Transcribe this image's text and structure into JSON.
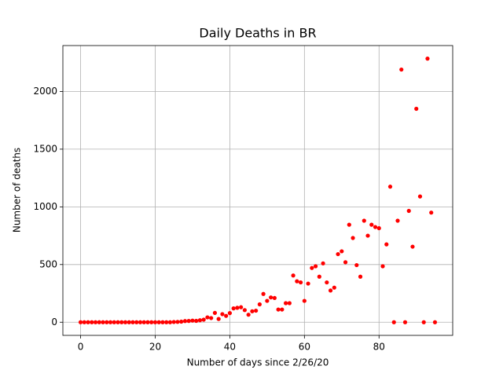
{
  "chart_data": {
    "type": "scatter",
    "title": "Daily Deaths in BR",
    "x_label": "Number of days since 2/26/20",
    "y_label": "Number of deaths",
    "color": "red",
    "grid": true,
    "xlim": [
      -4.75,
      99.75
    ],
    "ylim": [
      -114,
      2398
    ],
    "xticks": [
      0,
      20,
      40,
      60,
      80
    ],
    "yticks": [
      0,
      500,
      1000,
      1500,
      2000
    ],
    "x": [
      0,
      1,
      2,
      3,
      4,
      5,
      6,
      7,
      8,
      9,
      10,
      11,
      12,
      13,
      14,
      15,
      16,
      17,
      18,
      19,
      20,
      21,
      22,
      23,
      24,
      25,
      26,
      27,
      28,
      29,
      30,
      31,
      32,
      33,
      34,
      35,
      36,
      37,
      38,
      39,
      40,
      41,
      42,
      43,
      44,
      45,
      46,
      47,
      48,
      49,
      50,
      51,
      52,
      53,
      54,
      55,
      56,
      57,
      58,
      59,
      60,
      61,
      62,
      63,
      64,
      65,
      66,
      67,
      68,
      69,
      70,
      71,
      72,
      73,
      74,
      75,
      76,
      77,
      78,
      79,
      80,
      81,
      82,
      83,
      84,
      85,
      86,
      87,
      88,
      89,
      90,
      91,
      92,
      93,
      94,
      95
    ],
    "values": [
      0,
      0,
      0,
      0,
      0,
      0,
      0,
      0,
      0,
      0,
      0,
      0,
      0,
      0,
      0,
      0,
      0,
      0,
      0,
      0,
      0,
      0,
      0,
      0,
      0,
      2,
      3,
      5,
      10,
      11,
      14,
      12,
      17,
      22,
      42,
      36,
      81,
      28,
      70,
      55,
      79,
      120,
      125,
      130,
      105,
      65,
      95,
      100,
      155,
      245,
      185,
      215,
      210,
      110,
      110,
      165,
      165,
      405,
      355,
      345,
      185,
      335,
      470,
      485,
      395,
      510,
      345,
      275,
      300,
      590,
      615,
      520,
      845,
      730,
      495,
      395,
      880,
      750,
      845,
      825,
      815,
      485,
      675,
      1175,
      0,
      880,
      2190,
      0,
      965,
      655,
      1850,
      1090,
      0,
      2285,
      950,
      0
    ]
  }
}
